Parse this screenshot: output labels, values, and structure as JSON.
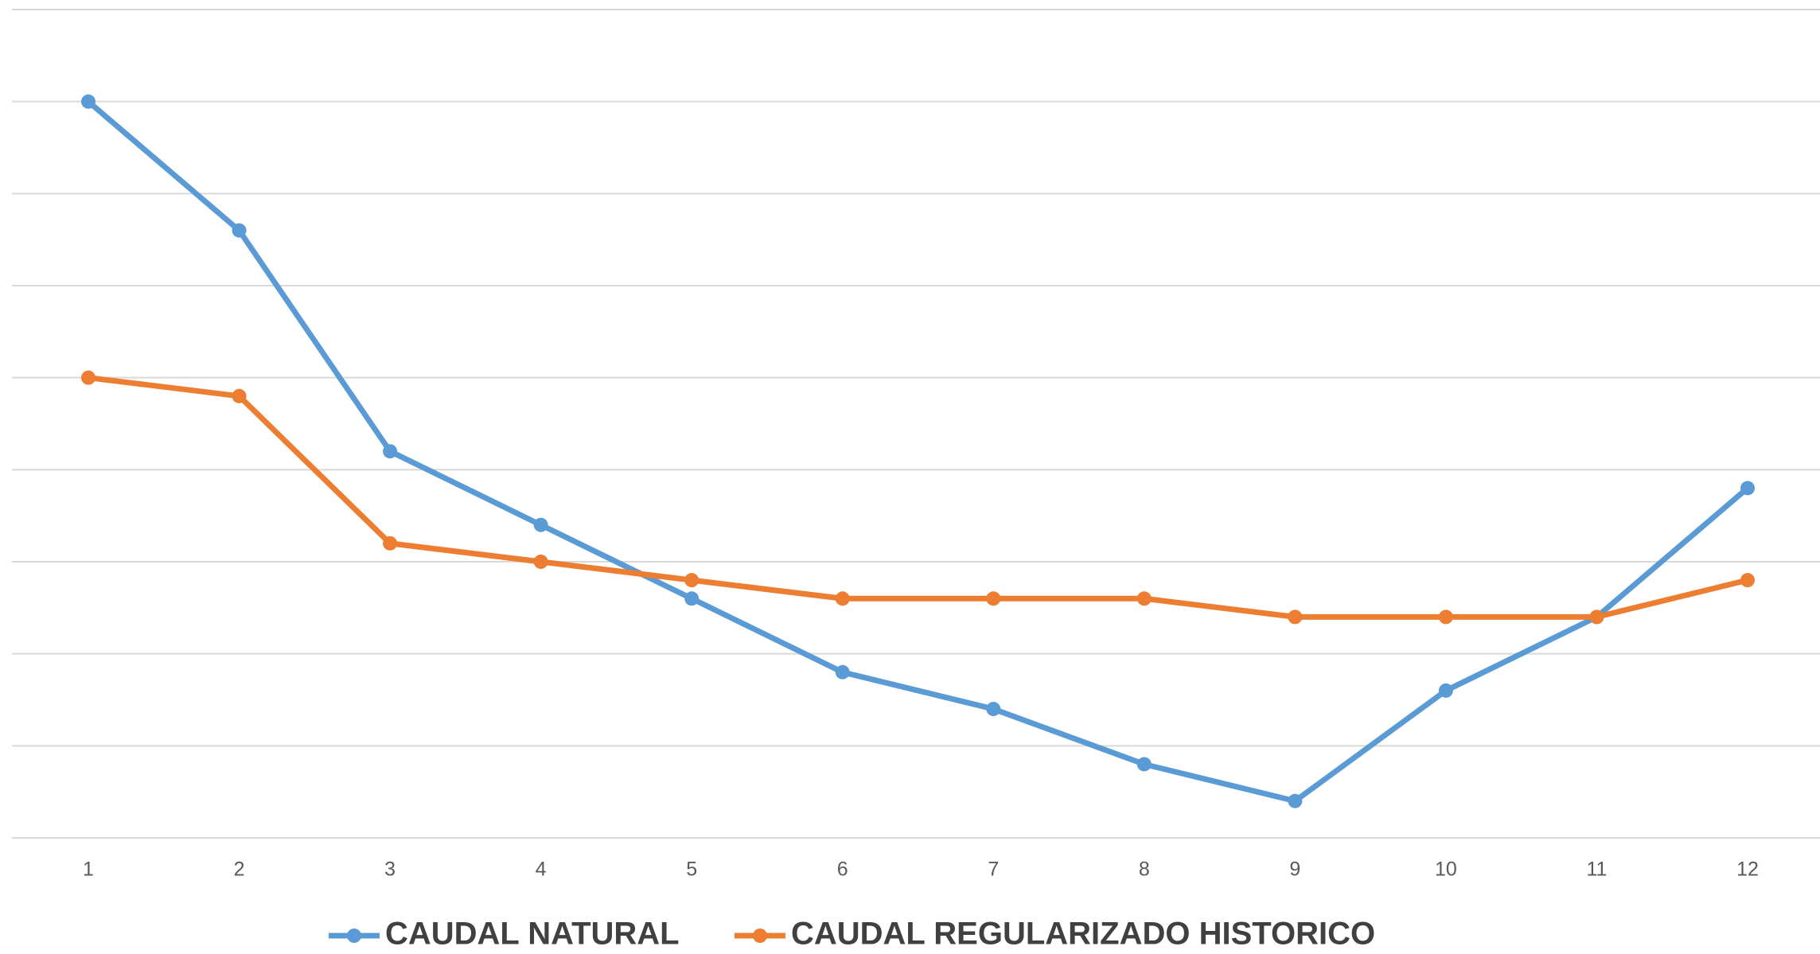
{
  "chart_data": {
    "type": "line",
    "categories": [
      1,
      2,
      3,
      4,
      5,
      6,
      7,
      8,
      9,
      10,
      11,
      12
    ],
    "series": [
      {
        "name": "CAUDAL NATURAL",
        "color": "#5b9bd5",
        "values": [
          8.0,
          6.6,
          4.2,
          3.4,
          2.6,
          1.8,
          1.4,
          0.8,
          0.4,
          1.6,
          2.4,
          3.8
        ]
      },
      {
        "name": "CAUDAL REGULARIZADO HISTORICO",
        "color": "#ed7d31",
        "values": [
          5.0,
          4.8,
          3.2,
          3.0,
          2.8,
          2.6,
          2.6,
          2.6,
          2.4,
          2.4,
          2.4,
          2.8
        ]
      }
    ],
    "ylim": [
      0,
      9
    ],
    "yticks": [
      0,
      1,
      2,
      3,
      4,
      5,
      6,
      7,
      8,
      9
    ],
    "grid": true,
    "legend": "bottom"
  }
}
